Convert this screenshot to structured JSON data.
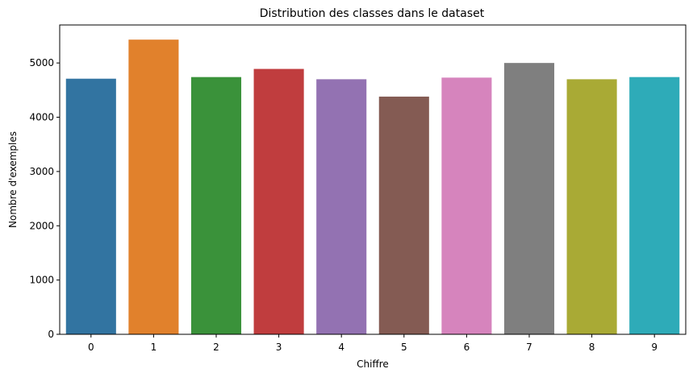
{
  "chart_data": {
    "type": "bar",
    "title": "Distribution des classes dans le dataset",
    "xlabel": "Chiffre",
    "ylabel": "Nombre d'exemples",
    "categories": [
      "0",
      "1",
      "2",
      "3",
      "4",
      "5",
      "6",
      "7",
      "8",
      "9"
    ],
    "values": [
      4710,
      5430,
      4740,
      4890,
      4700,
      4380,
      4730,
      5000,
      4700,
      4740
    ],
    "colors": [
      "#3274a1",
      "#e1812c",
      "#3a923a",
      "#c03d3e",
      "#9372b2",
      "#845b53",
      "#d684bd",
      "#7f7f7f",
      "#a9aa35",
      "#2eabb8"
    ],
    "ylim": [
      0,
      5700
    ],
    "yticks": [
      0,
      1000,
      2000,
      3000,
      4000,
      5000
    ],
    "grid": false,
    "legend": "none"
  }
}
